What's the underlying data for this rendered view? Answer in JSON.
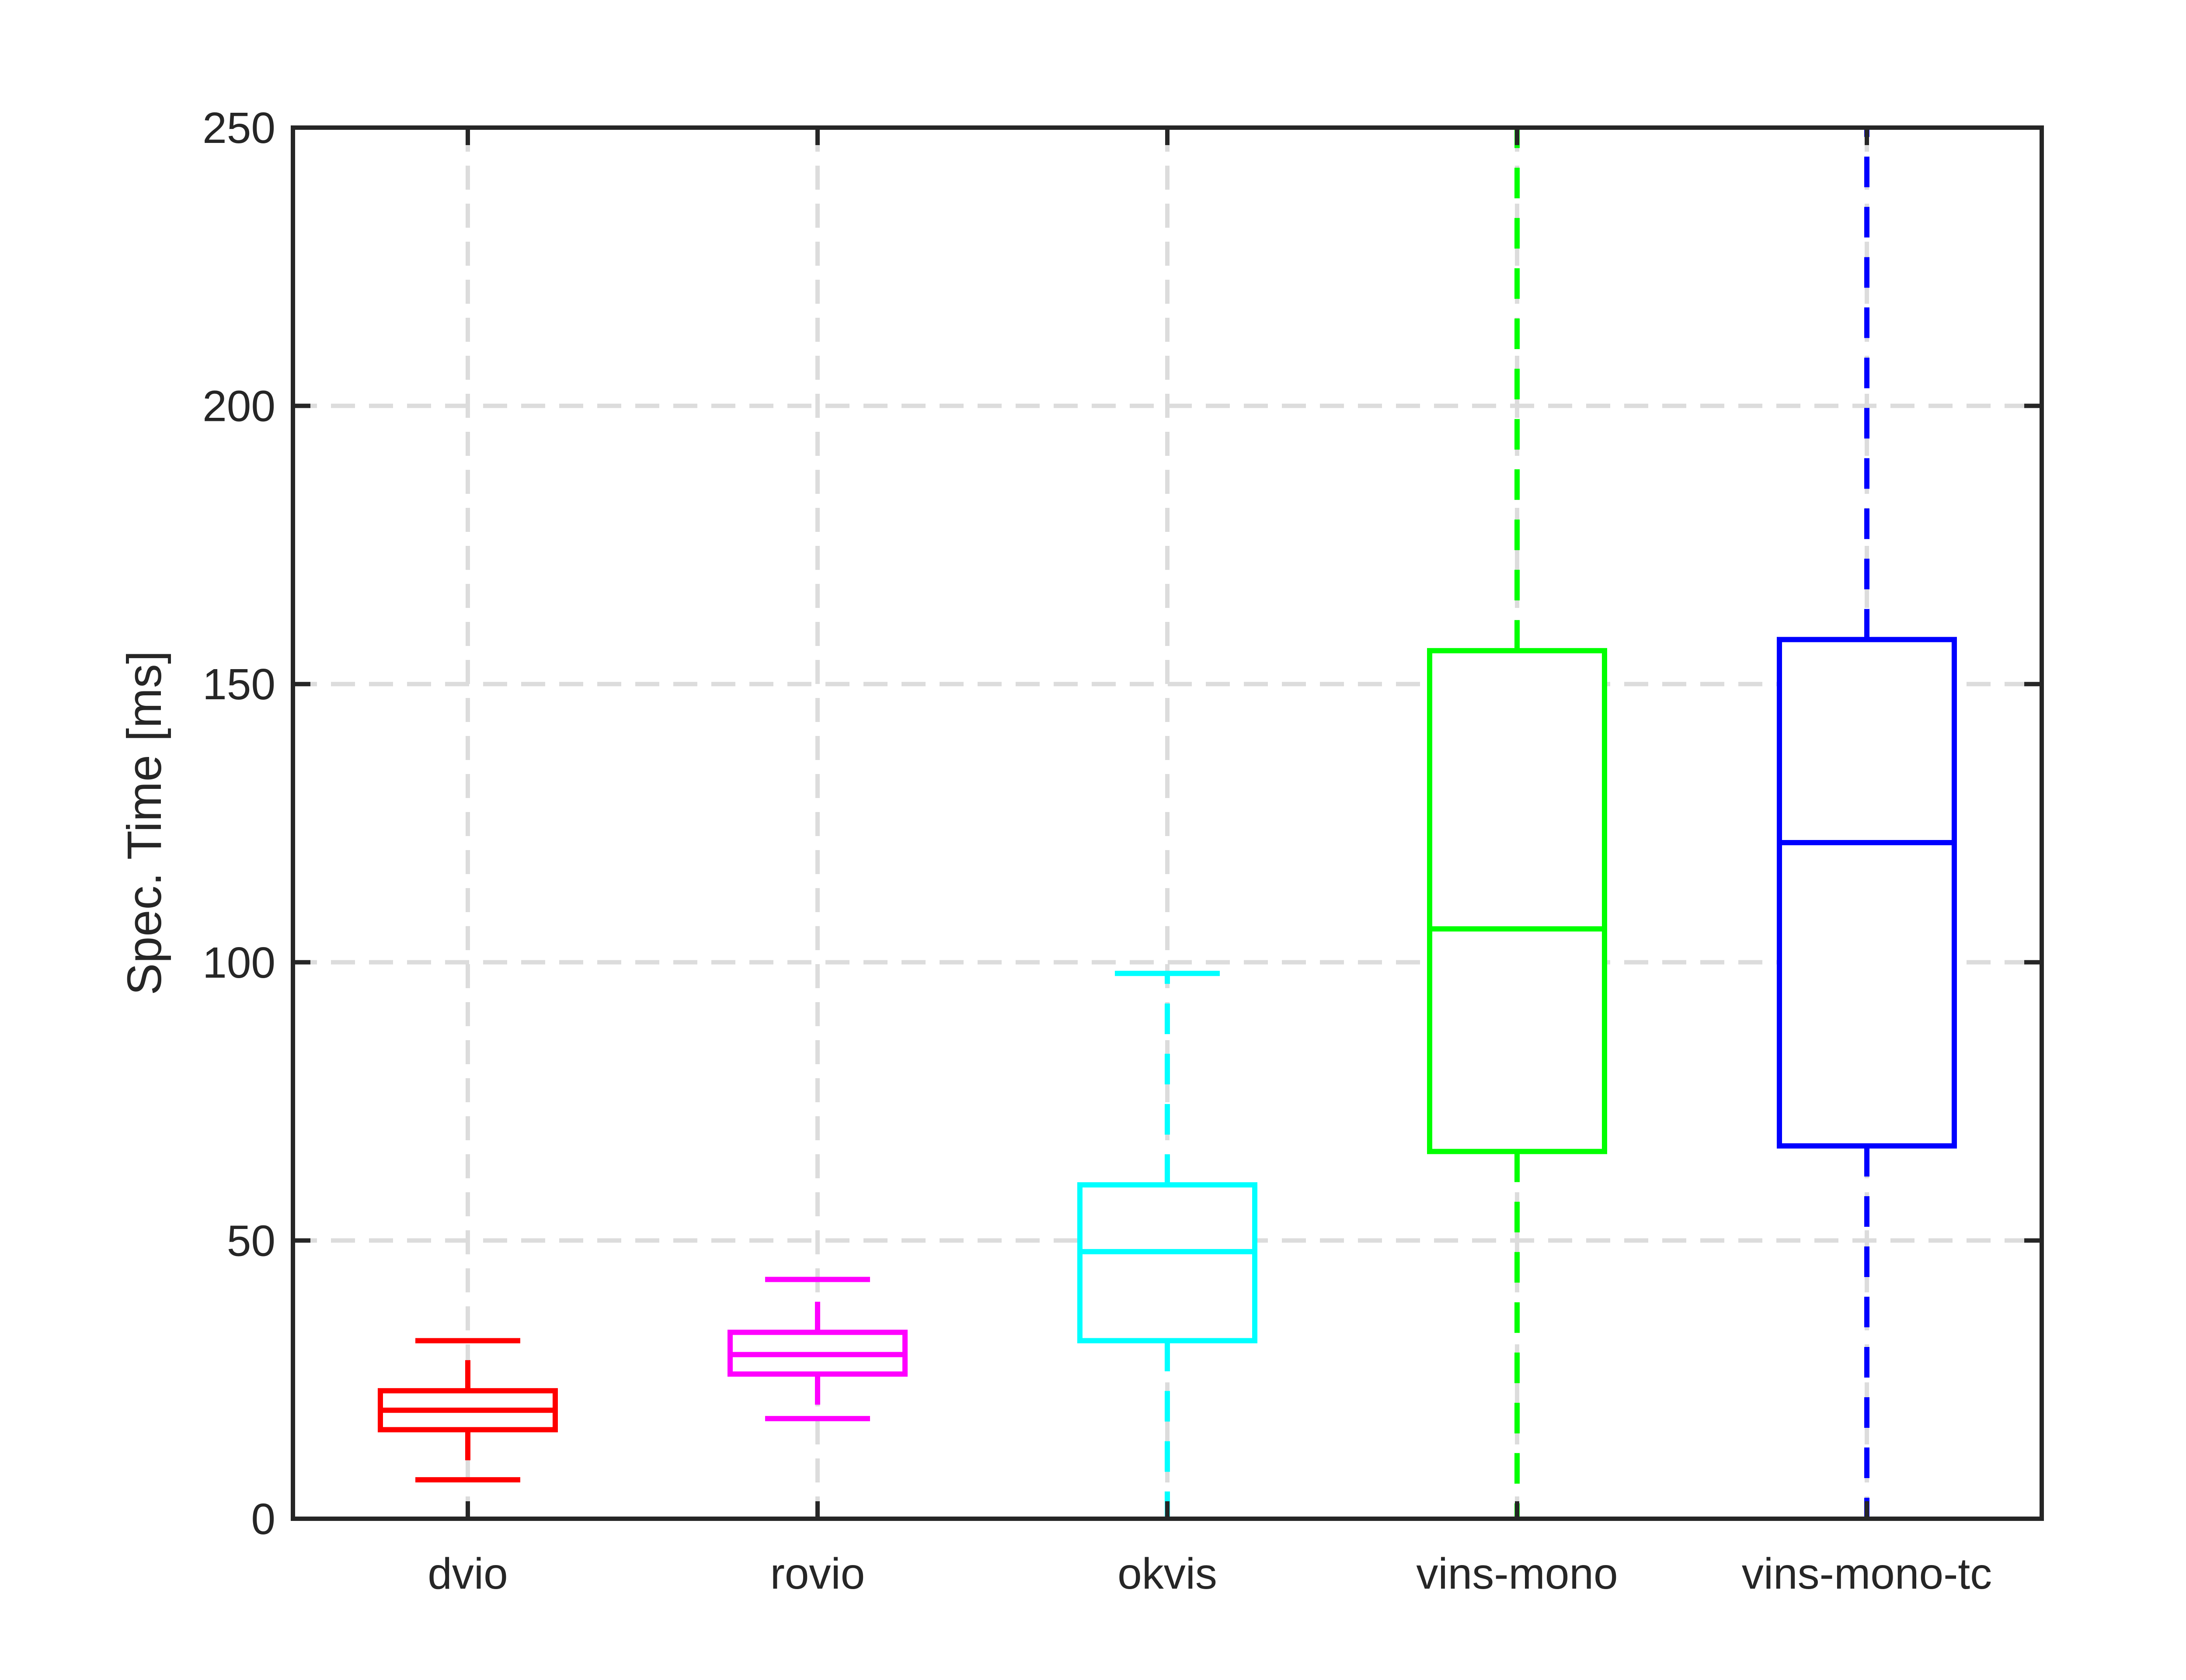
{
  "chart_data": {
    "type": "box",
    "ylabel": "Spec. Time [ms]",
    "ylim": [
      0,
      250
    ],
    "yticks": [
      0,
      50,
      100,
      150,
      200,
      250
    ],
    "grid": true,
    "categories": [
      "dvio",
      "rovio",
      "okvis",
      "vins-mono",
      "vins-mono-tc"
    ],
    "boxes": [
      {
        "label": "dvio",
        "color": "#ff0000",
        "whisker_low": 7,
        "q1": 16,
        "median": 19.5,
        "q3": 23,
        "whisker_high": 32,
        "whisker_capped": true
      },
      {
        "label": "rovio",
        "color": "#ff00ff",
        "whisker_low": 18,
        "q1": 26,
        "median": 29.5,
        "q3": 33.5,
        "whisker_high": 43,
        "whisker_capped": true
      },
      {
        "label": "okvis",
        "color": "#00ffff",
        "whisker_low": 0,
        "q1": 32,
        "median": 48,
        "q3": 60,
        "whisker_high": 98,
        "whisker_capped": true
      },
      {
        "label": "vins-mono",
        "color": "#00ff00",
        "whisker_low": 0,
        "q1": 66,
        "median": 106,
        "q3": 156,
        "whisker_high": 250,
        "whisker_capped": false
      },
      {
        "label": "vins-mono-tc",
        "color": "#0000ff",
        "whisker_low": 0,
        "q1": 67,
        "median": 121.5,
        "q3": 158,
        "whisker_high": 250,
        "whisker_capped": false
      }
    ]
  }
}
